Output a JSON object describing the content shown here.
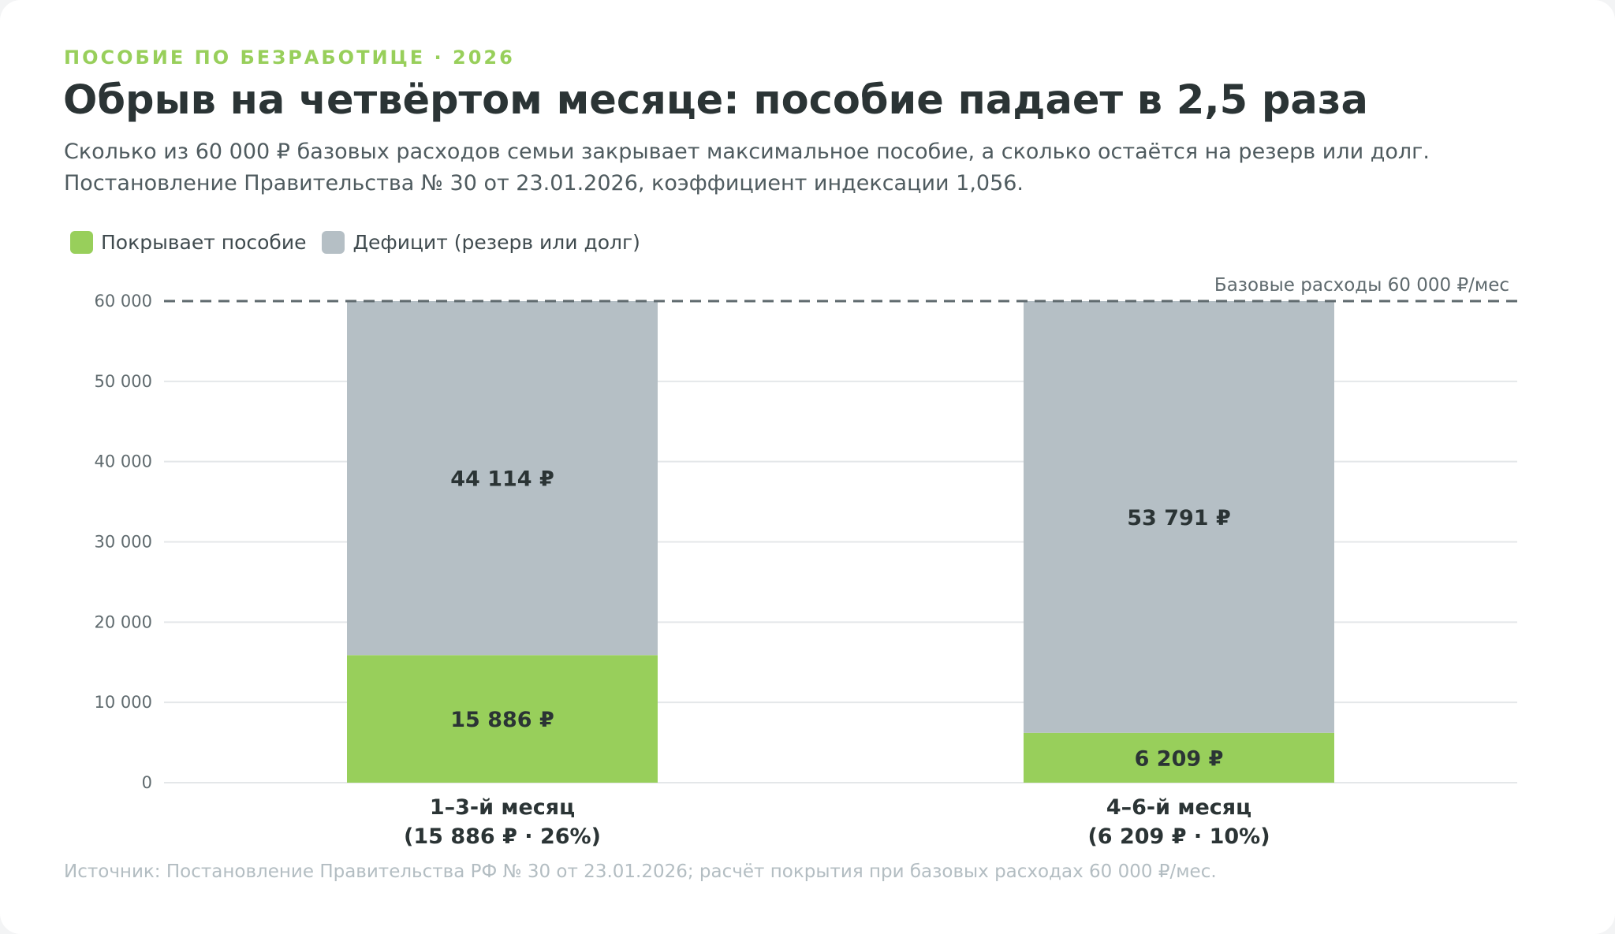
{
  "header": {
    "kicker": "ПОСОБИЕ ПО БЕЗРАБОТИЦЕ · 2026",
    "title": "Обрыв на четвёртом месяце: пособие падает в 2,5 раза",
    "subtitle_line1": "Сколько из 60 000 ₽ базовых расходов семьи закрывает максимальное пособие, а сколько остаётся на резерв или долг.",
    "subtitle_line2": "Постановление Правительства № 30 от 23.01.2026, коэффициент индексации 1,056."
  },
  "footer": {
    "source": "Источник: Постановление Правительства РФ № 30 от 23.01.2026; расчёт покрытия при базовых расходах 60 000 ₽/мес."
  },
  "colors": {
    "covered": "#98cf5b",
    "deficit": "#b5bfc5",
    "grid": "#e4e7e9",
    "reference": "#5f6a6e"
  },
  "chart_data": {
    "type": "bar",
    "stacked": true,
    "categories": [
      {
        "line1": "1–3-й месяц",
        "line2": "(15 886 ₽ · 26%)"
      },
      {
        "line1": "4–6-й месяц",
        "line2": "(6 209 ₽ · 10%)"
      }
    ],
    "series": [
      {
        "name": "Покрывает пособие",
        "color": "#98cf5b",
        "values": [
          15886,
          6209
        ],
        "labels": [
          "15 886 ₽",
          "6 209 ₽"
        ]
      },
      {
        "name": "Дефицит (резерв или долг)",
        "color": "#b5bfc5",
        "values": [
          44114,
          53791
        ],
        "labels": [
          "44 114 ₽",
          "53 791 ₽"
        ]
      }
    ],
    "ylim": [
      0,
      60000
    ],
    "yticks": [
      0,
      10000,
      20000,
      30000,
      40000,
      50000,
      60000
    ],
    "ytick_labels": [
      "0",
      "10 000",
      "20 000",
      "30 000",
      "40 000",
      "50 000",
      "60 000"
    ],
    "reference_line": {
      "value": 60000,
      "label": "Базовые расходы 60 000 ₽/мес"
    },
    "grid": true,
    "legend_position": "top-left"
  }
}
